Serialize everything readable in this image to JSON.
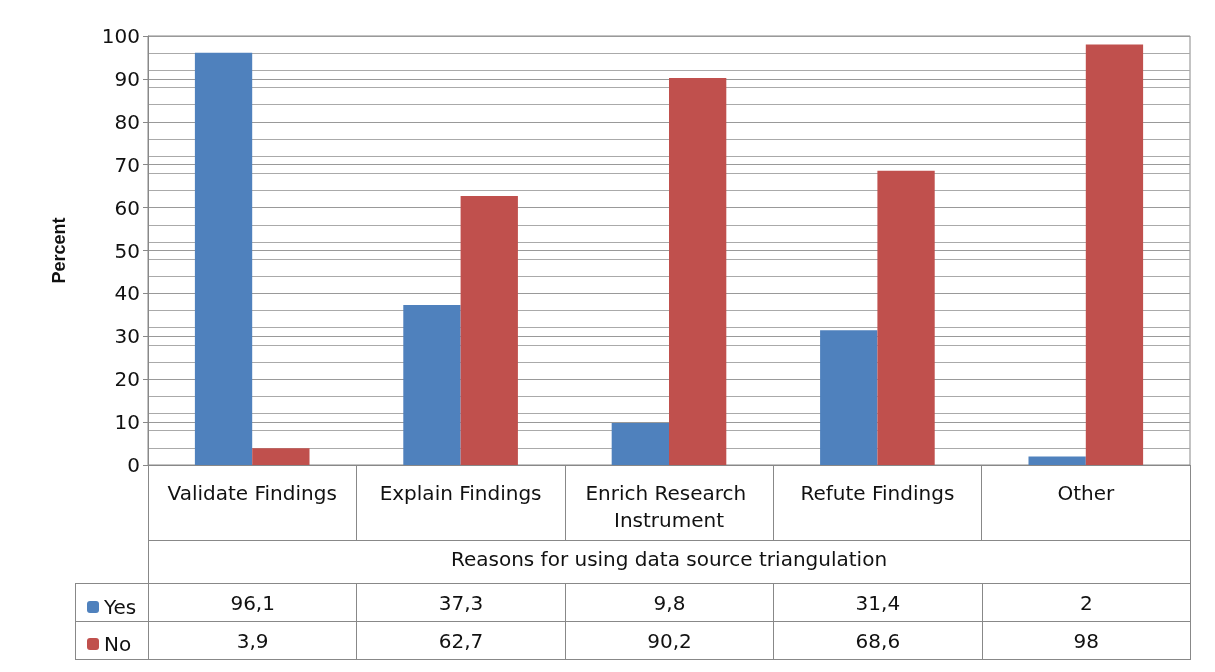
{
  "chart_data": {
    "type": "bar",
    "ylabel": "Percent",
    "xlabel": "Reasons for using data source triangulation",
    "categories": [
      "Validate Findings",
      "Explain Findings",
      "Enrich Research Instrument",
      "Refute Findings",
      "Other"
    ],
    "series": [
      {
        "name": "Yes",
        "color": "#4f81bd",
        "values": [
          96.1,
          37.3,
          9.8,
          31.4,
          2
        ],
        "value_labels": [
          "96,1",
          "37,3",
          "9,8",
          "31,4",
          "2"
        ]
      },
      {
        "name": "No",
        "color": "#c0504d",
        "values": [
          3.9,
          62.7,
          90.2,
          68.6,
          98
        ],
        "value_labels": [
          "3,9",
          "62,7",
          "90,2",
          "68,6",
          "98"
        ]
      }
    ],
    "ylim": [
      0,
      100
    ],
    "yticks": [
      0,
      10,
      20,
      30,
      40,
      50,
      60,
      70,
      80,
      90,
      100
    ],
    "grid": "y",
    "legend": "bottom left"
  }
}
